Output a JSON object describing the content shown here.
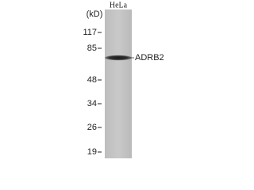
{
  "unit_label": "(kD)",
  "lane_label": "HeLa",
  "markers": [
    "117",
    "85",
    "48",
    "34",
    "26",
    "19"
  ],
  "band_label": "ADRB2"
}
